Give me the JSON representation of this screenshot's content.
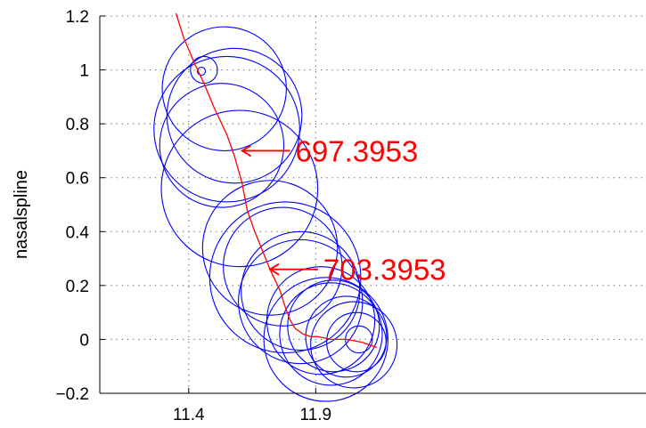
{
  "chart_data": {
    "type": "line",
    "title": "",
    "xlabel": "",
    "ylabel": "nasalspline",
    "xlim": [
      11.05,
      13.2
    ],
    "ylim": [
      -0.2,
      1.2
    ],
    "x_ticks": [
      11.4,
      11.9
    ],
    "x_tick_labels": [
      "11.4",
      "11.9"
    ],
    "y_ticks": [
      -0.2,
      0,
      0.2,
      0.4,
      0.6,
      0.8,
      1.0,
      1.2
    ],
    "y_tick_labels": [
      "−0.2",
      "0",
      "0.2",
      "0.4",
      "0.6",
      "0.8",
      "1",
      "1.2"
    ],
    "grid": true,
    "colors": {
      "trajectory": "#ff0000",
      "circles": "#0000ff",
      "annotation": "#ff0000"
    },
    "series": [
      {
        "x": [
          11.35,
          11.38,
          11.42,
          11.46,
          11.5,
          11.55,
          11.58,
          11.61,
          11.63,
          11.66,
          11.69,
          11.72,
          11.76,
          11.78,
          11.8,
          11.82,
          11.85,
          11.88,
          11.91,
          11.96,
          12.02,
          12.08,
          12.14
        ],
        "y": [
          1.21,
          1.12,
          1.03,
          0.95,
          0.86,
          0.76,
          0.68,
          0.58,
          0.48,
          0.4,
          0.33,
          0.26,
          0.18,
          0.12,
          0.07,
          0.04,
          0.02,
          0.01,
          0.01,
          0.0,
          0.0,
          -0.01,
          -0.03
        ]
      }
    ],
    "circles": [
      {
        "cx": 11.45,
        "cy": 0.995,
        "r": 0.015
      },
      {
        "cx": 11.46,
        "cy": 1.0,
        "r": 0.05
      },
      {
        "cx": 11.54,
        "cy": 0.93,
        "r": 0.23
      },
      {
        "cx": 11.58,
        "cy": 0.83,
        "r": 0.25
      },
      {
        "cx": 11.55,
        "cy": 0.78,
        "r": 0.27
      },
      {
        "cx": 11.53,
        "cy": 0.72,
        "r": 0.23
      },
      {
        "cx": 11.6,
        "cy": 0.56,
        "r": 0.29
      },
      {
        "cx": 11.72,
        "cy": 0.34,
        "r": 0.25
      },
      {
        "cx": 11.77,
        "cy": 0.27,
        "r": 0.22
      },
      {
        "cx": 11.78,
        "cy": 0.23,
        "r": 0.28
      },
      {
        "cx": 11.84,
        "cy": 0.18,
        "r": 0.22
      },
      {
        "cx": 11.84,
        "cy": 0.14,
        "r": 0.23
      },
      {
        "cx": 11.92,
        "cy": 0.07,
        "r": 0.2
      },
      {
        "cx": 11.97,
        "cy": 0.05,
        "r": 0.17
      },
      {
        "cx": 11.96,
        "cy": 0.02,
        "r": 0.19
      },
      {
        "cx": 11.94,
        "cy": 0.0,
        "r": 0.23
      },
      {
        "cx": 12.02,
        "cy": 0.01,
        "r": 0.15
      },
      {
        "cx": 12.07,
        "cy": 0.0,
        "r": 0.05
      },
      {
        "cx": 12.06,
        "cy": -0.01,
        "r": 0.11
      },
      {
        "cx": 12.05,
        "cy": -0.02,
        "r": 0.16
      }
    ],
    "annotations": [
      {
        "text": "697.3953",
        "x": 11.82,
        "y": 0.7,
        "arrow_to_x": 11.61,
        "arrow_to_y": 0.7
      },
      {
        "text": "703.3953",
        "x": 11.93,
        "y": 0.26,
        "arrow_to_x": 11.72,
        "arrow_to_y": 0.26
      }
    ]
  }
}
